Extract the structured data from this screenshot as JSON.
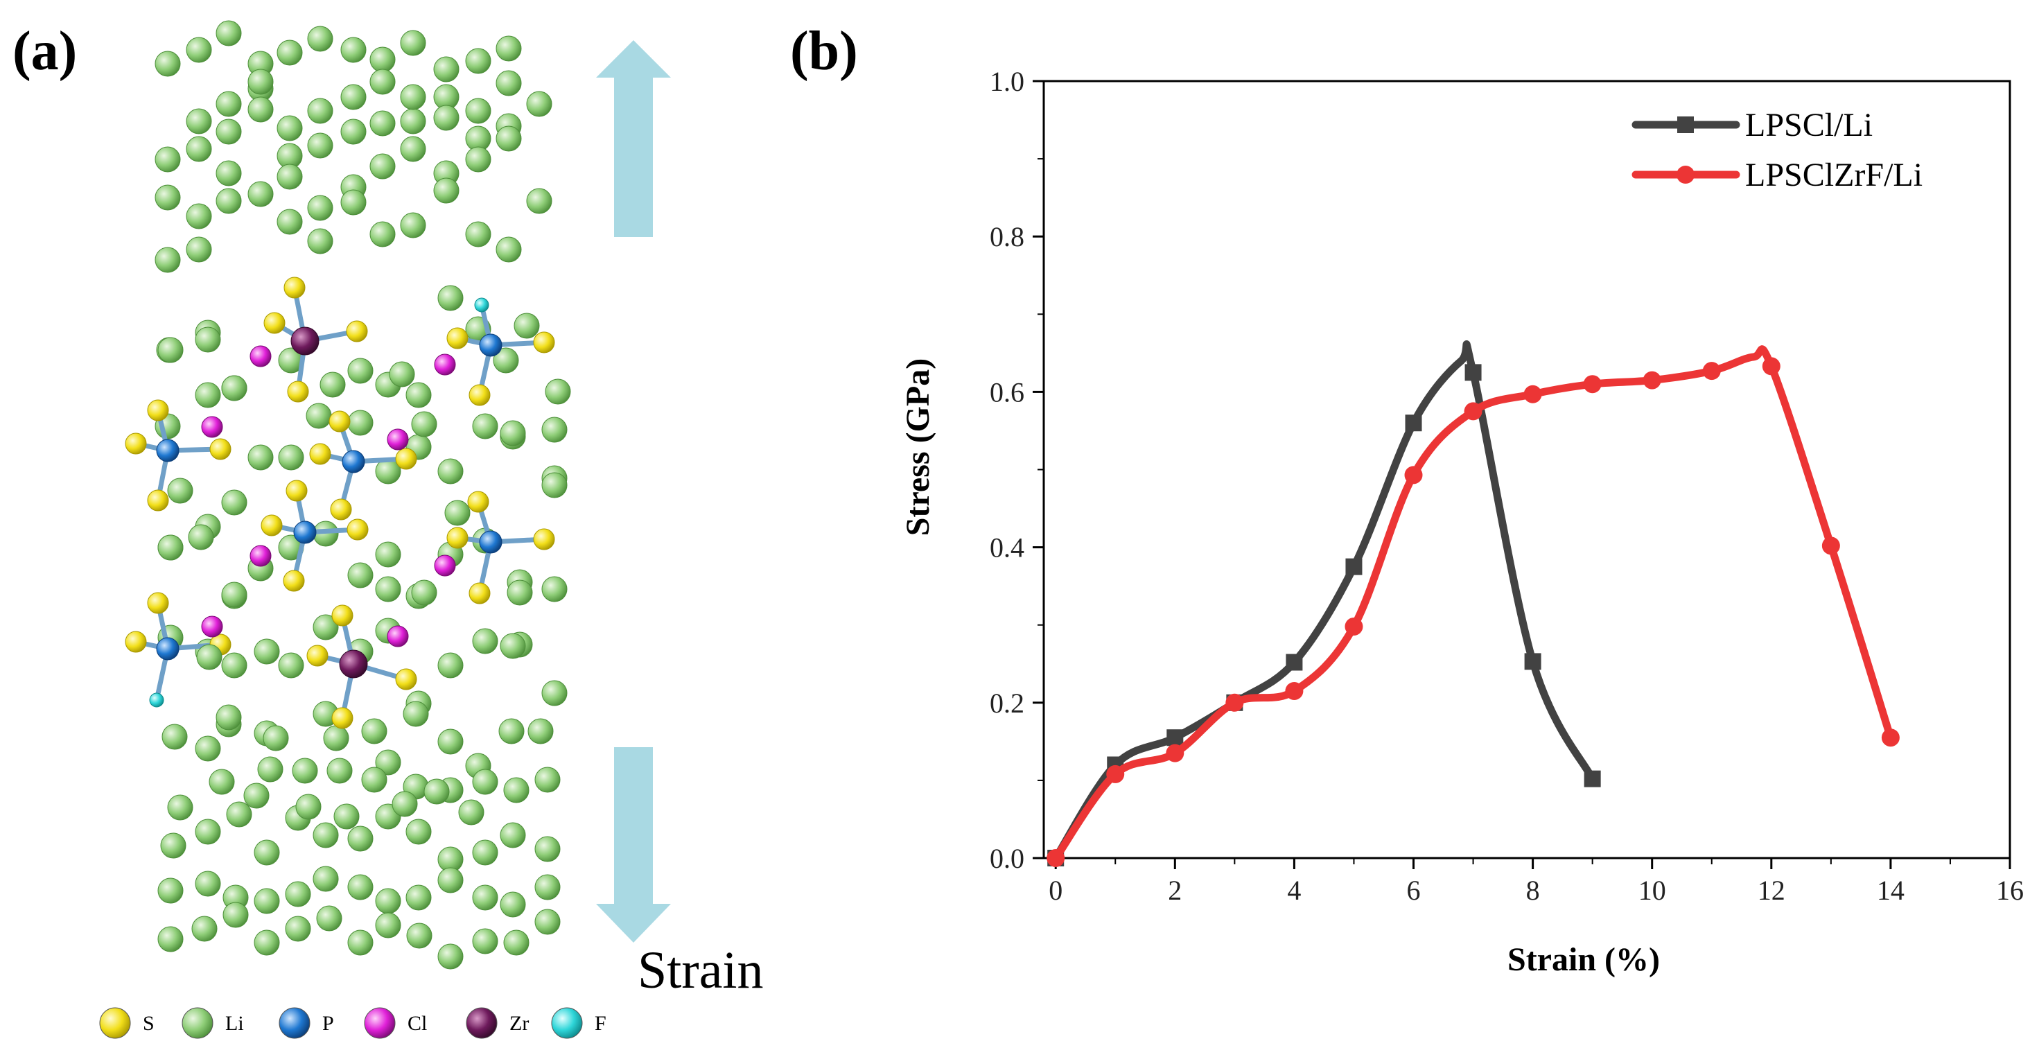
{
  "panel_a": {
    "label": "(a)",
    "strain_label": "Strain",
    "atom_legend": [
      {
        "symbol": "S",
        "color": "#f2df1a"
      },
      {
        "symbol": "Li",
        "color": "#8fce78"
      },
      {
        "symbol": "P",
        "color": "#1f78d1"
      },
      {
        "symbol": "Cl",
        "color": "#e020d8"
      },
      {
        "symbol": "Zr",
        "color": "#6e1a5c"
      },
      {
        "symbol": "F",
        "color": "#2fd6d9"
      }
    ],
    "arrow_color": "#a9d9e3"
  },
  "panel_b": {
    "label": "(b)"
  },
  "chart_data": {
    "type": "line",
    "title": "",
    "xlabel": "Strain (%)",
    "ylabel": "Stress (GPa)",
    "xlim": [
      0,
      16
    ],
    "ylim": [
      0,
      1.0
    ],
    "xticks": [
      0,
      2,
      4,
      6,
      8,
      10,
      12,
      14,
      16
    ],
    "yticks": [
      0.0,
      0.2,
      0.4,
      0.6,
      0.8,
      1.0
    ],
    "xtick_labels": [
      "0",
      "2",
      "4",
      "6",
      "8",
      "10",
      "12",
      "14",
      "16"
    ],
    "ytick_labels": [
      "0.0",
      "0.2",
      "0.4",
      "0.6",
      "0.8",
      "1.0"
    ],
    "legend_position": "top-right",
    "series": [
      {
        "name": "LPSCl/Li",
        "color": "#424242",
        "marker": "square",
        "x": [
          0,
          1,
          2,
          3,
          4,
          5,
          6,
          7,
          8,
          9
        ],
        "values": [
          0.0,
          0.12,
          0.155,
          0.2,
          0.252,
          0.375,
          0.56,
          0.625,
          0.253,
          0.102
        ],
        "peak": {
          "x": 6.8,
          "y": 0.64
        }
      },
      {
        "name": "LPSClZrF/Li",
        "color": "#ec3535",
        "marker": "circle",
        "x": [
          0,
          1,
          2,
          3,
          4,
          5,
          6,
          7,
          8,
          9,
          10,
          11,
          12,
          13,
          14
        ],
        "values": [
          0.0,
          0.108,
          0.135,
          0.2,
          0.215,
          0.298,
          0.493,
          0.575,
          0.597,
          0.61,
          0.615,
          0.627,
          0.633,
          0.402,
          0.155
        ],
        "peak": {
          "x": 11.7,
          "y": 0.645
        }
      }
    ]
  }
}
